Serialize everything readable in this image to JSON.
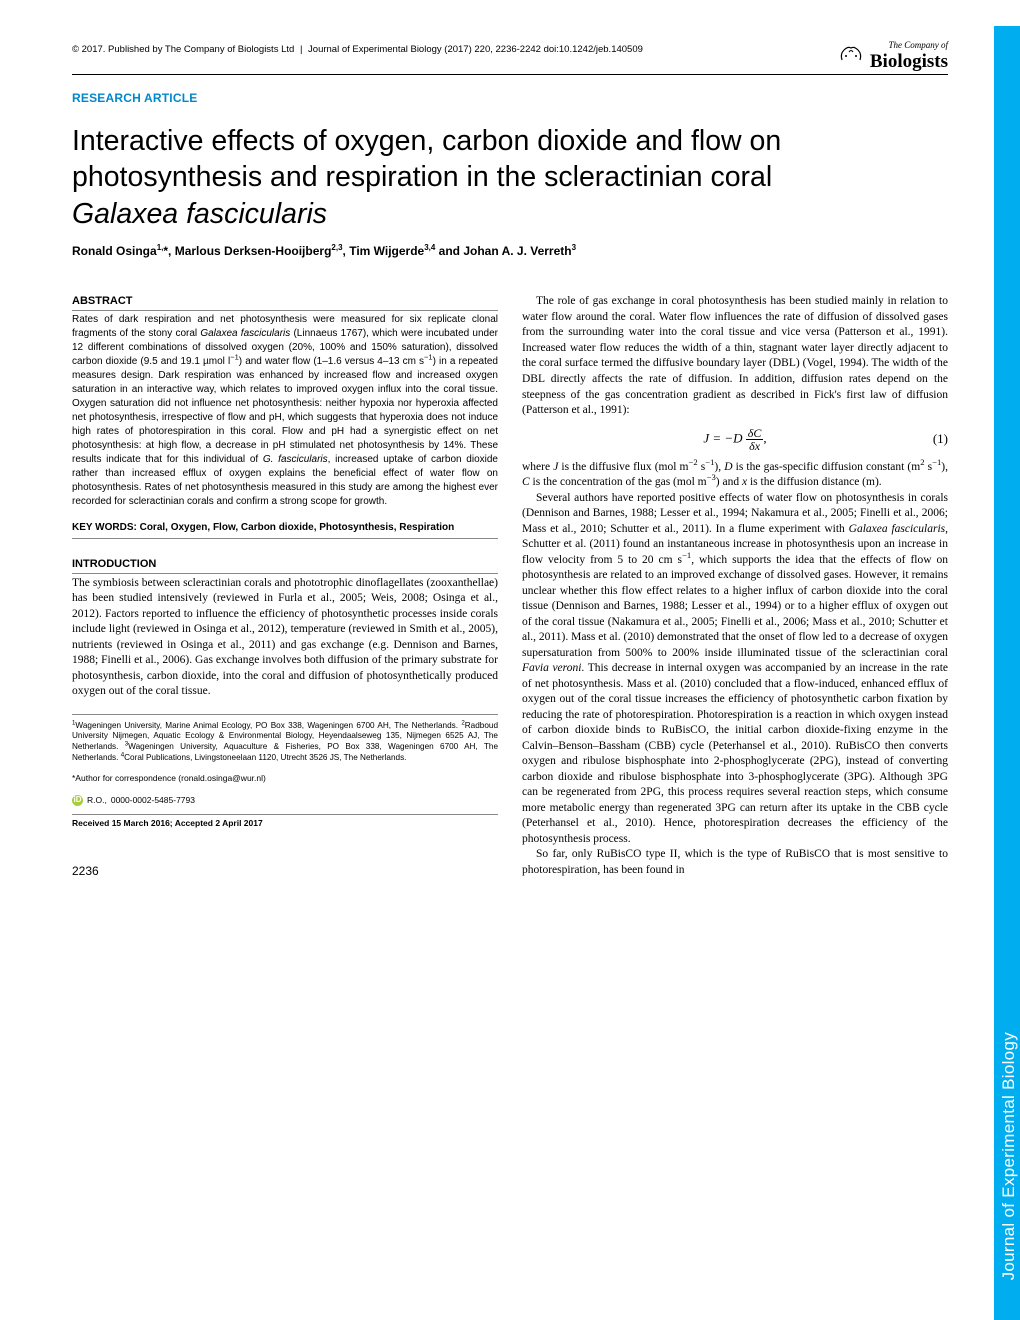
{
  "header": {
    "copyright": "© 2017. Published by The Company of Biologists Ltd",
    "journal": "Journal of Experimental Biology (2017) 220, 2236-2242 doi:10.1242/jeb.140509",
    "logo_top": "The Company of",
    "logo_bottom": "Biologists"
  },
  "section_label": "RESEARCH ARTICLE",
  "title_line1": "Interactive effects of oxygen, carbon dioxide and flow on",
  "title_line2": "photosynthesis and respiration in the scleractinian coral",
  "title_species": "Galaxea fascicularis",
  "authors_html": "Ronald Osinga<sup>1,</sup>*, Marlous Derksen-Hooijberg<sup>2,3</sup>, Tim Wijgerde<sup>3,4</sup> and Johan A. J. Verreth<sup>3</sup>",
  "abstract_head": "ABSTRACT",
  "abstract_text": "Rates of dark respiration and net photosynthesis were measured for six replicate clonal fragments of the stony coral <em>Galaxea fascicularis</em> (Linnaeus 1767), which were incubated under 12 different combinations of dissolved oxygen (20%, 100% and 150% saturation), dissolved carbon dioxide (9.5 and 19.1 µmol l<sup>−1</sup>) and water flow (1–1.6 versus 4–13 cm s<sup>−1</sup>) in a repeated measures design. Dark respiration was enhanced by increased flow and increased oxygen saturation in an interactive way, which relates to improved oxygen influx into the coral tissue. Oxygen saturation did not influence net photosynthesis: neither hypoxia nor hyperoxia affected net photosynthesis, irrespective of flow and pH, which suggests that hyperoxia does not induce high rates of photorespiration in this coral. Flow and pH had a synergistic effect on net photosynthesis: at high flow, a decrease in pH stimulated net photosynthesis by 14%. These results indicate that for this individual of <em>G. fascicularis</em>, increased uptake of carbon dioxide rather than increased efflux of oxygen explains the beneficial effect of water flow on photosynthesis. Rates of net photosynthesis measured in this study are among the highest ever recorded for scleractinian corals and confirm a strong scope for growth.",
  "keywords_label": "KEY WORDS: Coral, Oxygen, Flow, Carbon dioxide, Photosynthesis, Respiration",
  "intro_head": "INTRODUCTION",
  "intro_p1": "The symbiosis between scleractinian corals and phototrophic dinoflagellates (zooxanthellae) has been studied intensively (reviewed in Furla et al., 2005; Weis, 2008; Osinga et al., 2012). Factors reported to influence the efficiency of photosynthetic processes inside corals include light (reviewed in Osinga et al., 2012), temperature (reviewed in Smith et al., 2005), nutrients (reviewed in Osinga et al., 2011) and gas exchange (e.g. Dennison and Barnes, 1988; Finelli et al., 2006). Gas exchange involves both diffusion of the primary substrate for photosynthesis, carbon dioxide, into the coral and diffusion of photosynthetically produced oxygen out of the coral tissue.",
  "col2_p1": "The role of gas exchange in coral photosynthesis has been studied mainly in relation to water flow around the coral. Water flow influences the rate of diffusion of dissolved gases from the surrounding water into the coral tissue and vice versa (Patterson et al., 1991). Increased water flow reduces the width of a thin, stagnant water layer directly adjacent to the coral surface termed the diffusive boundary layer (DBL) (Vogel, 1994). The width of the DBL directly affects the rate of diffusion. In addition, diffusion rates depend on the steepness of the gas concentration gradient as described in Fick's first law of diffusion (Patterson et al., 1991):",
  "eq_left": "J = −D",
  "eq_frac_num": "δC",
  "eq_frac_den": "δx",
  "eq_comma": ",",
  "eq_num": "(1)",
  "col2_p2": "where <em>J</em> is the diffusive flux (mol m<sup>−2</sup> s<sup>−1</sup>), <em>D</em> is the gas-specific diffusion constant (m<sup>2</sup> s<sup>−1</sup>), <em>C</em> is the concentration of the gas (mol m<sup>−3</sup>) and <em>x</em> is the diffusion distance (m).",
  "col2_p3": "Several authors have reported positive effects of water flow on photosynthesis in corals (Dennison and Barnes, 1988; Lesser et al., 1994; Nakamura et al., 2005; Finelli et al., 2006; Mass et al., 2010; Schutter et al., 2011). In a flume experiment with <em>Galaxea fascicularis</em>, Schutter et al. (2011) found an instantaneous increase in photosynthesis upon an increase in flow velocity from 5 to 20 cm s<sup>−1</sup>, which supports the idea that the effects of flow on photosynthesis are related to an improved exchange of dissolved gases. However, it remains unclear whether this flow effect relates to a higher influx of carbon dioxide into the coral tissue (Dennison and Barnes, 1988; Lesser et al., 1994) or to a higher efflux of oxygen out of the coral tissue (Nakamura et al., 2005; Finelli et al., 2006; Mass et al., 2010; Schutter et al., 2011). Mass et al. (2010) demonstrated that the onset of flow led to a decrease of oxygen supersaturation from 500% to 200% inside illuminated tissue of the scleractinian coral <em>Favia veroni</em>. This decrease in internal oxygen was accompanied by an increase in the rate of net photosynthesis. Mass et al. (2010) concluded that a flow-induced, enhanced efflux of oxygen out of the coral tissue increases the efficiency of photosynthetic carbon fixation by reducing the rate of photorespiration. Photorespiration is a reaction in which oxygen instead of carbon dioxide binds to RuBisCO, the initial carbon dioxide-fixing enzyme in the Calvin–Benson–Bassham (CBB) cycle (Peterhansel et al., 2010). RuBisCO then converts oxygen and ribulose bisphosphate into 2-phosphoglycerate (2PG), instead of converting carbon dioxide and ribulose bisphosphate into 3-phosphoglycerate (3PG). Although 3PG can be regenerated from 2PG, this process requires several reaction steps, which consume more metabolic energy than regenerated 3PG can return after its uptake in the CBB cycle (Peterhansel et al., 2010). Hence, photorespiration decreases the efficiency of the photosynthesis process.",
  "col2_p4": "So far, only RuBisCO type II, which is the type of RuBisCO that is most sensitive to photorespiration, has been found in",
  "affiliations": "<sup>1</sup>Wageningen University, Marine Animal Ecology, PO Box 338, Wageningen 6700 AH, The Netherlands. <sup>2</sup>Radboud University Nijmegen, Aquatic Ecology & Environmental Biology, Heyendaalseweg 135, Nijmegen 6525 AJ, The Netherlands. <sup>3</sup>Wageningen University, Aquaculture & Fisheries, PO Box 338, Wageningen 6700 AH, The Netherlands. <sup>4</sup>Coral Publications, Livingstoneelaan 1120, Utrecht 3526 JS, The Netherlands.",
  "correspondence": "*Author for correspondence (ronald.osinga@wur.nl)",
  "orcid_initials": "R.O.,",
  "orcid_id": "0000-0002-5485-7793",
  "received": "Received 15 March 2016; Accepted 2 April 2017",
  "pagenum": "2236",
  "sidebar_text": "Journal of Experimental Biology",
  "colors": {
    "accent": "#0088cc",
    "sidebar": "#00aeef",
    "orcid": "#a6ce39"
  }
}
